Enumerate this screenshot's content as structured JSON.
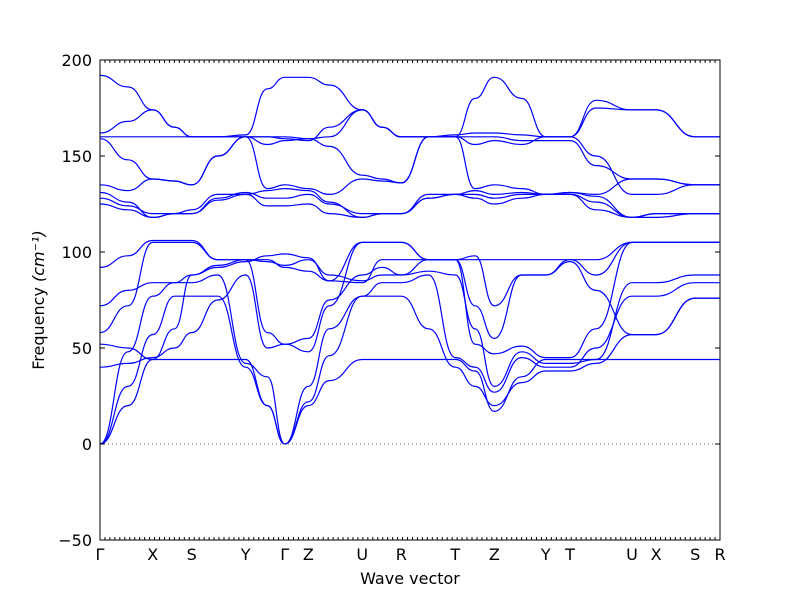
{
  "chart_data": {
    "type": "line",
    "xlabel": "Wave vector",
    "ylabel": "Frequency",
    "ylabel_unit": "(cm⁻¹)",
    "ylim": [
      -50,
      200
    ],
    "yticks": [
      -50,
      0,
      50,
      100,
      150,
      200
    ],
    "xlim": [
      0,
      100
    ],
    "zero_line": "dotted",
    "grid": false,
    "legend": "none",
    "line_color": "#0000ff",
    "high_symmetry_points": [
      {
        "label": "Γ",
        "x": 0.0
      },
      {
        "label": "X",
        "x": 8.5
      },
      {
        "label": "S",
        "x": 14.8
      },
      {
        "label": "Y",
        "x": 23.5
      },
      {
        "label": "Γ",
        "x": 29.8
      },
      {
        "label": "Z",
        "x": 33.6
      },
      {
        "label": "U",
        "x": 42.3
      },
      {
        "label": "R",
        "x": 48.6
      },
      {
        "label": "T",
        "x": 57.3
      },
      {
        "label": "Z",
        "x": 63.6
      },
      {
        "label": "Y",
        "x": 71.9
      },
      {
        "label": "T",
        "x": 75.8
      },
      {
        "label": "U",
        "x": 85.8
      },
      {
        "label": "X",
        "x": 89.7
      },
      {
        "label": "S",
        "x": 96.0
      },
      {
        "label": "R",
        "x": 100.0
      }
    ],
    "series": [
      {
        "x": [
          0,
          4.5,
          8.5,
          12,
          14.8,
          19,
          23.5,
          27,
          29.8,
          33.6,
          37,
          42.3,
          45.5,
          48.6,
          53,
          57.3,
          60.5,
          63.6,
          68,
          71.9,
          75.8,
          80,
          85.8,
          89.7,
          96,
          100
        ],
        "y": [
          0,
          20,
          44,
          44,
          44,
          44,
          44,
          20,
          0,
          20,
          33,
          44,
          44,
          44,
          44,
          44,
          38,
          17,
          35,
          44,
          44,
          44,
          44,
          44,
          44,
          44
        ]
      },
      {
        "x": [
          0,
          4.5,
          8.5,
          12,
          14.8,
          19,
          23.5,
          27,
          29.8,
          33.6,
          37,
          42.3,
          45.5,
          48.6,
          53,
          57.3,
          60.5,
          63.6,
          68,
          71.9,
          75.8,
          80,
          85.8,
          89.7,
          96,
          100
        ],
        "y": [
          0,
          30,
          57,
          77,
          77,
          77,
          40,
          20,
          0,
          22,
          46,
          77,
          77,
          77,
          60,
          40,
          30,
          20,
          32,
          38,
          38,
          42,
          57,
          57,
          76,
          76
        ]
      },
      {
        "x": [
          0,
          4.5,
          8.5,
          12,
          14.8,
          19,
          23.5,
          27,
          29.8,
          33.6,
          37,
          42.3,
          45.5,
          48.6,
          53,
          57.3,
          60.5,
          63.6,
          68,
          71.9,
          75.8,
          80,
          85.8,
          89.7,
          96,
          100
        ],
        "y": [
          0,
          48,
          77,
          84,
          84,
          88,
          42,
          35,
          0,
          30,
          60,
          77,
          84,
          84,
          88,
          45,
          40,
          27,
          45,
          40,
          40,
          50,
          77,
          77,
          84,
          84
        ]
      },
      {
        "x": [
          0,
          4.5,
          8.5,
          12,
          14.8,
          19,
          23.5,
          27,
          29.8,
          33.6,
          37,
          42.3,
          45.5,
          48.6,
          53,
          57.3,
          60.5,
          63.6,
          68,
          71.9,
          75.8,
          80,
          85.8,
          89.7,
          96,
          100
        ],
        "y": [
          40,
          42,
          45,
          50,
          58,
          75,
          88,
          50,
          52,
          55,
          75,
          88,
          92,
          88,
          90,
          88,
          60,
          30,
          48,
          42,
          42,
          44,
          84,
          84,
          88,
          88
        ]
      },
      {
        "x": [
          0,
          4.5,
          8.5,
          12,
          14.8,
          19,
          23.5,
          27,
          29.8,
          33.6,
          37,
          42.3,
          45.5,
          48.6,
          53,
          57.3,
          60.5,
          63.6,
          68,
          71.9,
          75.8,
          80,
          85.8,
          89.7,
          96,
          100
        ],
        "y": [
          52,
          50,
          44,
          60,
          88,
          93,
          96,
          58,
          52,
          48,
          72,
          105,
          105,
          105,
          96,
          96,
          52,
          47,
          51,
          45,
          45,
          60,
          105,
          105,
          105,
          105
        ]
      },
      {
        "x": [
          0,
          4.5,
          8.5,
          12,
          14.8,
          19,
          23.5,
          27,
          29.8,
          33.6,
          37,
          42.3,
          45.5,
          48.6,
          53,
          57.3,
          60.5,
          63.6,
          68,
          71.9,
          75.8,
          80,
          85.8,
          89.7,
          96,
          100
        ],
        "y": [
          58,
          72,
          105,
          105,
          105,
          96,
          96,
          96,
          92,
          90,
          85,
          84,
          96,
          96,
          96,
          96,
          72,
          55,
          88,
          88,
          95,
          80,
          57,
          57,
          76,
          76
        ]
      },
      {
        "x": [
          0,
          4.5,
          8.5,
          12,
          14.8,
          19,
          23.5,
          27,
          29.8,
          33.6,
          37,
          42.3,
          45.5,
          48.6,
          53,
          57.3,
          60.5,
          63.6,
          68,
          71.9,
          75.8,
          80,
          85.8,
          89.7,
          96,
          100
        ],
        "y": [
          72,
          80,
          84,
          84,
          88,
          92,
          95,
          98,
          99,
          97,
          85,
          105,
          105,
          105,
          96,
          96,
          96,
          96,
          96,
          96,
          96,
          88,
          105,
          105,
          105,
          105
        ]
      },
      {
        "x": [
          0,
          4.5,
          8.5,
          12,
          14.8,
          19,
          23.5,
          27,
          29.8,
          33.6,
          37,
          42.3,
          45.5,
          48.6,
          53,
          57.3,
          60.5,
          63.6,
          68,
          71.9,
          75.8,
          80,
          85.8,
          89.7,
          96,
          100
        ],
        "y": [
          92,
          98,
          106,
          106,
          106,
          96,
          96,
          95,
          93,
          96,
          88,
          85,
          88,
          88,
          96,
          96,
          98,
          72,
          88,
          88,
          96,
          96,
          105,
          105,
          105,
          105
        ]
      },
      {
        "x": [
          0,
          4.5,
          8.5,
          12,
          14.8,
          19,
          23.5,
          27,
          29.8,
          33.6,
          37,
          42.3,
          45.5,
          48.6,
          53,
          57.3,
          60.5,
          63.6,
          68,
          71.9,
          75.8,
          80,
          85.8,
          89.7,
          96,
          100
        ],
        "y": [
          125,
          122,
          118,
          120,
          120,
          127,
          130,
          124,
          124,
          125,
          120,
          118,
          120,
          120,
          128,
          130,
          128,
          125,
          128,
          130,
          130,
          122,
          118,
          118,
          120,
          120
        ]
      },
      {
        "x": [
          0,
          4.5,
          8.5,
          12,
          14.8,
          19,
          23.5,
          27,
          29.8,
          33.6,
          37,
          42.3,
          45.5,
          48.6,
          53,
          57.3,
          60.5,
          63.6,
          68,
          71.9,
          75.8,
          80,
          85.8,
          89.7,
          96,
          100
        ],
        "y": [
          128,
          124,
          120,
          120,
          120,
          128,
          131,
          128,
          128,
          130,
          125,
          120,
          120,
          120,
          128,
          130,
          130,
          128,
          130,
          130,
          130,
          126,
          118,
          120,
          120,
          120
        ]
      },
      {
        "x": [
          0,
          4.5,
          8.5,
          12,
          14.8,
          19,
          23.5,
          27,
          29.8,
          33.6,
          37,
          42.3,
          45.5,
          48.6,
          53,
          57.3,
          60.5,
          63.6,
          68,
          71.9,
          75.8,
          80,
          85.8,
          89.7,
          96,
          100
        ],
        "y": [
          131,
          126,
          118,
          120,
          122,
          130,
          130,
          132,
          133,
          132,
          126,
          118,
          120,
          120,
          130,
          130,
          132,
          130,
          131,
          130,
          131,
          129,
          118,
          120,
          120,
          120
        ]
      },
      {
        "x": [
          0,
          4.5,
          8.5,
          12,
          14.8,
          19,
          23.5,
          27,
          29.8,
          33.6,
          37,
          42.3,
          45.5,
          48.6,
          53,
          57.3,
          60.5,
          63.6,
          68,
          71.9,
          75.8,
          80,
          85.8,
          89.7,
          96,
          100
        ],
        "y": [
          135,
          132,
          138,
          137,
          135,
          150,
          160,
          133,
          135,
          133,
          130,
          138,
          137,
          136,
          160,
          160,
          133,
          135,
          133,
          130,
          131,
          130,
          138,
          138,
          135,
          135
        ]
      },
      {
        "x": [
          0,
          4.5,
          8.5,
          12,
          14.8,
          19,
          23.5,
          27,
          29.8,
          33.6,
          37,
          42.3,
          45.5,
          48.6,
          53,
          57.3,
          60.5,
          63.6,
          68,
          71.9,
          75.8,
          80,
          85.8,
          89.7,
          96,
          100
        ],
        "y": [
          159,
          148,
          138,
          137,
          135,
          150,
          160,
          160,
          159,
          158,
          165,
          174,
          165,
          160,
          160,
          160,
          160,
          160,
          158,
          158,
          158,
          145,
          138,
          138,
          135,
          135
        ]
      },
      {
        "x": [
          0,
          4.5,
          8.5,
          12,
          14.8,
          19,
          23.5,
          27,
          29.8,
          33.6,
          37,
          42.3,
          45.5,
          48.6,
          53,
          57.3,
          60.5,
          63.6,
          68,
          71.9,
          75.8,
          80,
          85.8,
          89.7,
          96,
          100
        ],
        "y": [
          160,
          160,
          160,
          160,
          160,
          160,
          160,
          156,
          158,
          159,
          160,
          174,
          165,
          160,
          160,
          160,
          156,
          158,
          156,
          160,
          160,
          150,
          130,
          130,
          135,
          135
        ]
      },
      {
        "x": [
          0,
          4.5,
          8.5,
          12,
          14.8,
          19,
          23.5,
          27,
          29.8,
          33.6,
          37,
          42.3,
          45.5,
          48.6,
          53,
          57.3,
          60.5,
          63.6,
          68,
          71.9,
          75.8,
          80,
          85.8,
          89.7,
          96,
          100
        ],
        "y": [
          162,
          168,
          174,
          165,
          160,
          160,
          160,
          160,
          160,
          159,
          155,
          140,
          138,
          136,
          160,
          161,
          162,
          162,
          161,
          160,
          160,
          175,
          174,
          174,
          160,
          160
        ]
      },
      {
        "x": [
          0,
          4.5,
          8.5,
          12,
          14.8,
          19,
          23.5,
          27,
          29.8,
          33.6,
          37,
          42.3,
          45.5,
          48.6,
          53,
          57.3,
          60.5,
          63.6,
          68,
          71.9,
          75.8,
          80,
          85.8,
          89.7,
          96,
          100
        ],
        "y": [
          192,
          186,
          174,
          165,
          160,
          160,
          161,
          185,
          191,
          191,
          187,
          174,
          165,
          160,
          160,
          160,
          180,
          191,
          180,
          160,
          160,
          179,
          174,
          174,
          160,
          160
        ]
      }
    ]
  }
}
